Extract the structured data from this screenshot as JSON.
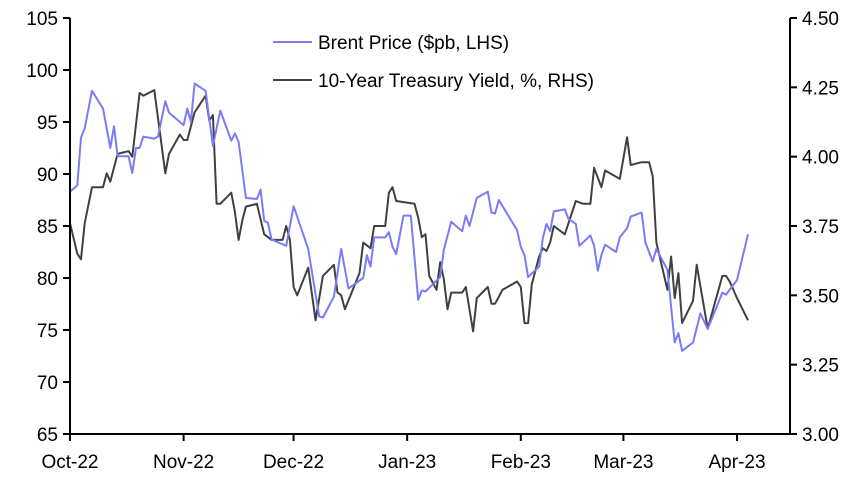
{
  "chart_data": {
    "type": "line",
    "title": "",
    "xlabel": "",
    "ylabel": "",
    "y2label": "",
    "grid": false,
    "legend_position": "top-center",
    "x_ticks": [
      {
        "date": "2022-10-01",
        "label": "Oct-22"
      },
      {
        "date": "2022-11-01",
        "label": "Nov-22"
      },
      {
        "date": "2022-12-01",
        "label": "Dec-22"
      },
      {
        "date": "2023-01-01",
        "label": "Jan-23"
      },
      {
        "date": "2023-02-01",
        "label": "Feb-23"
      },
      {
        "date": "2023-03-01",
        "label": "Mar-23"
      },
      {
        "date": "2023-04-01",
        "label": "Apr-23"
      }
    ],
    "ylim": [
      65,
      105
    ],
    "y_ticks": [
      "65",
      "70",
      "75",
      "80",
      "85",
      "90",
      "95",
      "100",
      "105"
    ],
    "y2lim": [
      3.0,
      4.5
    ],
    "y2_ticks": [
      "3.00",
      "3.25",
      "3.50",
      "3.75",
      "4.00",
      "4.25",
      "4.50"
    ],
    "series": [
      {
        "name": "Brent Price ($pb, LHS)",
        "axis": "left",
        "color": "#7b7bf7",
        "points": [
          [
            "2022-10-01",
            88.3
          ],
          [
            "2022-10-03",
            88.9
          ],
          [
            "2022-10-04",
            93.5
          ],
          [
            "2022-10-05",
            94.4
          ],
          [
            "2022-10-07",
            98.0
          ],
          [
            "2022-10-10",
            96.3
          ],
          [
            "2022-10-12",
            92.5
          ],
          [
            "2022-10-13",
            94.6
          ],
          [
            "2022-10-14",
            91.7
          ],
          [
            "2022-10-17",
            91.7
          ],
          [
            "2022-10-18",
            90.1
          ],
          [
            "2022-10-19",
            92.5
          ],
          [
            "2022-10-20",
            92.5
          ],
          [
            "2022-10-21",
            93.6
          ],
          [
            "2022-10-24",
            93.4
          ],
          [
            "2022-10-25",
            93.6
          ],
          [
            "2022-10-27",
            97.0
          ],
          [
            "2022-10-28",
            95.9
          ],
          [
            "2022-11-01",
            94.7
          ],
          [
            "2022-11-02",
            96.3
          ],
          [
            "2022-11-03",
            95.0
          ],
          [
            "2022-11-04",
            98.7
          ],
          [
            "2022-11-07",
            98.0
          ],
          [
            "2022-11-09",
            92.7
          ],
          [
            "2022-11-11",
            96.1
          ],
          [
            "2022-11-14",
            93.2
          ],
          [
            "2022-11-15",
            93.9
          ],
          [
            "2022-11-16",
            93.1
          ],
          [
            "2022-11-18",
            87.7
          ],
          [
            "2022-11-21",
            87.6
          ],
          [
            "2022-11-22",
            88.5
          ],
          [
            "2022-11-23",
            85.5
          ],
          [
            "2022-11-24",
            85.3
          ],
          [
            "2022-11-25",
            83.7
          ],
          [
            "2022-11-29",
            83.1
          ],
          [
            "2022-12-01",
            86.9
          ],
          [
            "2022-12-05",
            82.8
          ],
          [
            "2022-12-08",
            76.3
          ],
          [
            "2022-12-09",
            76.2
          ],
          [
            "2022-12-12",
            78.2
          ],
          [
            "2022-12-14",
            82.8
          ],
          [
            "2022-12-16",
            79.0
          ],
          [
            "2022-12-20",
            80.0
          ],
          [
            "2022-12-21",
            82.2
          ],
          [
            "2022-12-22",
            81.1
          ],
          [
            "2022-12-23",
            83.9
          ],
          [
            "2022-12-26",
            83.9
          ],
          [
            "2022-12-27",
            84.4
          ],
          [
            "2022-12-28",
            83.0
          ],
          [
            "2022-12-29",
            82.3
          ],
          [
            "2022-12-31",
            86.0
          ],
          [
            "2023-01-02",
            86.0
          ],
          [
            "2023-01-04",
            77.9
          ],
          [
            "2023-01-05",
            78.8
          ],
          [
            "2023-01-06",
            78.7
          ],
          [
            "2023-01-10",
            80.1
          ],
          [
            "2023-01-11",
            82.7
          ],
          [
            "2023-01-13",
            85.4
          ],
          [
            "2023-01-16",
            84.5
          ],
          [
            "2023-01-17",
            86.0
          ],
          [
            "2023-01-18",
            85.0
          ],
          [
            "2023-01-20",
            87.7
          ],
          [
            "2023-01-23",
            88.3
          ],
          [
            "2023-01-24",
            86.3
          ],
          [
            "2023-01-25",
            86.2
          ],
          [
            "2023-01-26",
            87.5
          ],
          [
            "2023-01-31",
            84.6
          ],
          [
            "2023-02-01",
            83.0
          ],
          [
            "2023-02-02",
            82.2
          ],
          [
            "2023-02-03",
            80.1
          ],
          [
            "2023-02-06",
            81.1
          ],
          [
            "2023-02-07",
            83.8
          ],
          [
            "2023-02-08",
            85.2
          ],
          [
            "2023-02-09",
            84.5
          ],
          [
            "2023-02-10",
            86.4
          ],
          [
            "2023-02-13",
            86.6
          ],
          [
            "2023-02-14",
            85.7
          ],
          [
            "2023-02-16",
            85.2
          ],
          [
            "2023-02-17",
            83.1
          ],
          [
            "2023-02-20",
            84.1
          ],
          [
            "2023-02-21",
            83.1
          ],
          [
            "2023-02-22",
            80.7
          ],
          [
            "2023-02-23",
            82.2
          ],
          [
            "2023-02-24",
            83.2
          ],
          [
            "2023-02-27",
            82.5
          ],
          [
            "2023-02-28",
            83.9
          ],
          [
            "2023-03-02",
            84.8
          ],
          [
            "2023-03-03",
            85.9
          ],
          [
            "2023-03-06",
            86.3
          ],
          [
            "2023-03-07",
            83.4
          ],
          [
            "2023-03-09",
            81.6
          ],
          [
            "2023-03-10",
            82.8
          ],
          [
            "2023-03-13",
            80.8
          ],
          [
            "2023-03-15",
            73.8
          ],
          [
            "2023-03-16",
            74.7
          ],
          [
            "2023-03-17",
            73.0
          ],
          [
            "2023-03-20",
            73.8
          ],
          [
            "2023-03-22",
            76.6
          ],
          [
            "2023-03-24",
            75.1
          ],
          [
            "2023-03-28",
            78.6
          ],
          [
            "2023-03-29",
            78.4
          ],
          [
            "2023-04-01",
            79.8
          ],
          [
            "2023-04-04",
            84.2
          ]
        ]
      },
      {
        "name": "10-Year Treasury Yield, %, RHS)",
        "axis": "right",
        "color": "#404040",
        "points": [
          [
            "2022-10-01",
            3.76
          ],
          [
            "2022-10-03",
            3.65
          ],
          [
            "2022-10-04",
            3.63
          ],
          [
            "2022-10-05",
            3.76
          ],
          [
            "2022-10-07",
            3.89
          ],
          [
            "2022-10-10",
            3.89
          ],
          [
            "2022-10-11",
            3.94
          ],
          [
            "2022-10-12",
            3.91
          ],
          [
            "2022-10-14",
            4.01
          ],
          [
            "2022-10-17",
            4.02
          ],
          [
            "2022-10-18",
            4.0
          ],
          [
            "2022-10-20",
            4.23
          ],
          [
            "2022-10-21",
            4.22
          ],
          [
            "2022-10-24",
            4.24
          ],
          [
            "2022-10-27",
            3.94
          ],
          [
            "2022-10-28",
            4.01
          ],
          [
            "2022-10-31",
            4.08
          ],
          [
            "2022-11-01",
            4.06
          ],
          [
            "2022-11-02",
            4.06
          ],
          [
            "2022-11-04",
            4.16
          ],
          [
            "2022-11-07",
            4.22
          ],
          [
            "2022-11-08",
            4.13
          ],
          [
            "2022-11-09",
            4.15
          ],
          [
            "2022-11-10",
            3.83
          ],
          [
            "2022-11-11",
            3.83
          ],
          [
            "2022-11-14",
            3.87
          ],
          [
            "2022-11-15",
            3.8
          ],
          [
            "2022-11-16",
            3.7
          ],
          [
            "2022-11-17",
            3.77
          ],
          [
            "2022-11-18",
            3.82
          ],
          [
            "2022-11-21",
            3.83
          ],
          [
            "2022-11-23",
            3.72
          ],
          [
            "2022-11-24",
            3.71
          ],
          [
            "2022-11-25",
            3.7
          ],
          [
            "2022-11-28",
            3.7
          ],
          [
            "2022-11-29",
            3.75
          ],
          [
            "2022-11-30",
            3.7
          ],
          [
            "2022-12-01",
            3.53
          ],
          [
            "2022-12-02",
            3.5
          ],
          [
            "2022-12-05",
            3.6
          ],
          [
            "2022-12-07",
            3.41
          ],
          [
            "2022-12-09",
            3.57
          ],
          [
            "2022-12-12",
            3.61
          ],
          [
            "2022-12-13",
            3.51
          ],
          [
            "2022-12-14",
            3.5
          ],
          [
            "2022-12-15",
            3.45
          ],
          [
            "2022-12-19",
            3.58
          ],
          [
            "2022-12-20",
            3.69
          ],
          [
            "2022-12-22",
            3.67
          ],
          [
            "2022-12-23",
            3.75
          ],
          [
            "2022-12-26",
            3.75
          ],
          [
            "2022-12-27",
            3.87
          ],
          [
            "2022-12-28",
            3.89
          ],
          [
            "2022-12-29",
            3.84
          ],
          [
            "2023-01-03",
            3.83
          ],
          [
            "2023-01-04",
            3.78
          ],
          [
            "2023-01-05",
            3.71
          ],
          [
            "2023-01-06",
            3.72
          ],
          [
            "2023-01-07",
            3.57
          ],
          [
            "2023-01-09",
            3.52
          ],
          [
            "2023-01-10",
            3.62
          ],
          [
            "2023-01-11",
            3.56
          ],
          [
            "2023-01-12",
            3.45
          ],
          [
            "2023-01-13",
            3.51
          ],
          [
            "2023-01-16",
            3.51
          ],
          [
            "2023-01-17",
            3.53
          ],
          [
            "2023-01-19",
            3.37
          ],
          [
            "2023-01-20",
            3.49
          ],
          [
            "2023-01-23",
            3.53
          ],
          [
            "2023-01-24",
            3.47
          ],
          [
            "2023-01-25",
            3.47
          ],
          [
            "2023-01-27",
            3.52
          ],
          [
            "2023-01-31",
            3.55
          ],
          [
            "2023-02-01",
            3.53
          ],
          [
            "2023-02-02",
            3.4
          ],
          [
            "2023-02-03",
            3.4
          ],
          [
            "2023-02-04",
            3.54
          ],
          [
            "2023-02-06",
            3.64
          ],
          [
            "2023-02-07",
            3.67
          ],
          [
            "2023-02-08",
            3.66
          ],
          [
            "2023-02-09",
            3.69
          ],
          [
            "2023-02-10",
            3.75
          ],
          [
            "2023-02-13",
            3.72
          ],
          [
            "2023-02-16",
            3.84
          ],
          [
            "2023-02-18",
            3.83
          ],
          [
            "2023-02-20",
            3.83
          ],
          [
            "2023-02-21",
            3.96
          ],
          [
            "2023-02-23",
            3.89
          ],
          [
            "2023-02-24",
            3.95
          ],
          [
            "2023-02-28",
            3.92
          ],
          [
            "2023-03-02",
            4.07
          ],
          [
            "2023-03-03",
            3.97
          ],
          [
            "2023-03-06",
            3.98
          ],
          [
            "2023-03-07",
            3.98
          ],
          [
            "2023-03-08",
            3.98
          ],
          [
            "2023-03-09",
            3.93
          ],
          [
            "2023-03-10",
            3.69
          ],
          [
            "2023-03-13",
            3.52
          ],
          [
            "2023-03-14",
            3.64
          ],
          [
            "2023-03-15",
            3.49
          ],
          [
            "2023-03-16",
            3.58
          ],
          [
            "2023-03-17",
            3.4
          ],
          [
            "2023-03-20",
            3.48
          ],
          [
            "2023-03-21",
            3.61
          ],
          [
            "2023-03-24",
            3.38
          ],
          [
            "2023-03-28",
            3.57
          ],
          [
            "2023-03-29",
            3.57
          ],
          [
            "2023-03-30",
            3.55
          ],
          [
            "2023-04-01",
            3.49
          ],
          [
            "2023-04-04",
            3.41
          ]
        ]
      }
    ]
  }
}
